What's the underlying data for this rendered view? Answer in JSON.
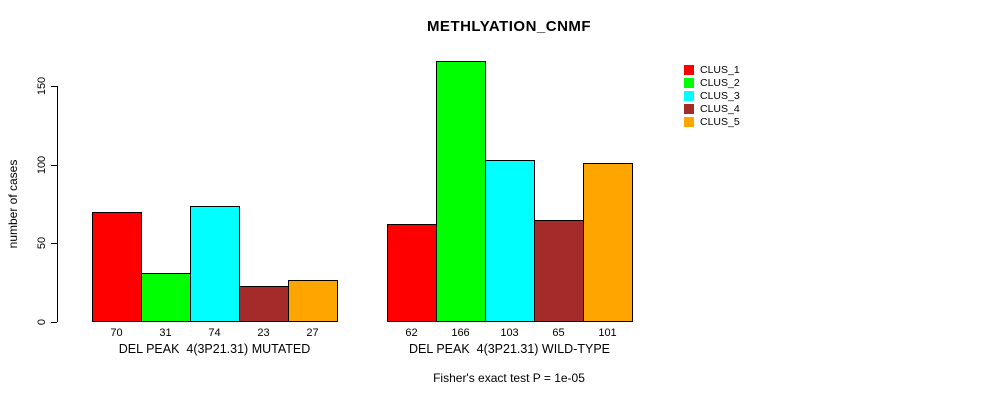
{
  "chart_data": {
    "type": "bar",
    "title": "METHLYATION_CNMF",
    "ylabel": "number of cases",
    "xlabel": "",
    "annotation": "Fisher's exact test P = 1e-05",
    "yticks": [
      0,
      50,
      100,
      150
    ],
    "ylim": [
      0,
      170
    ],
    "grid": false,
    "legend_position": "top-right",
    "legend": [
      {
        "label": "CLUS_1",
        "color": "#ff0000"
      },
      {
        "label": "CLUS_2",
        "color": "#00ff00"
      },
      {
        "label": "CLUS_3",
        "color": "#00ffff"
      },
      {
        "label": "CLUS_4",
        "color": "#a52a2a"
      },
      {
        "label": "CLUS_5",
        "color": "#ffa500"
      }
    ],
    "groups": [
      {
        "label": "DEL PEAK  4(3P21.31) MUTATED",
        "values": [
          70,
          31,
          74,
          23,
          27
        ]
      },
      {
        "label": "DEL PEAK  4(3P21.31) WILD-TYPE",
        "values": [
          62,
          166,
          103,
          65,
          101
        ]
      }
    ]
  }
}
